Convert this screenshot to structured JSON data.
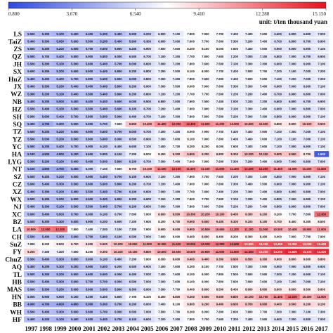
{
  "chart_data": {
    "type": "heatmap",
    "unit_label": "unit: t/ten thousand yuan",
    "colorbar": {
      "ticks": [
        "0.800",
        "3.670",
        "6.540",
        "9.410",
        "12.280",
        "15.150"
      ],
      "min": 0.8,
      "max": 15.15,
      "colors": [
        "#2d47e0",
        "#ffffff",
        "#e8101e"
      ]
    },
    "rows": [
      "LS",
      "TaiZ",
      "ZS",
      "QZ",
      "JH",
      "SX",
      "HuZ",
      "JX",
      "WZ",
      "NB",
      "HZ",
      "SH",
      "SQ",
      "TZ",
      "YZ",
      "YC",
      "HA",
      "LYG",
      "NT",
      "SZ",
      "CZ",
      "XZ",
      "WX",
      "NJ",
      "XC",
      "BZ",
      "LA",
      "CH",
      "SuZ",
      "FY",
      "ChuZ",
      "AQ",
      "TL",
      "HB",
      "MAS",
      "HN",
      "BB",
      "WH",
      "HF"
    ],
    "columns": [
      "1997",
      "1998",
      "1999",
      "2000",
      "2001",
      "2002",
      "2003",
      "2004",
      "2005",
      "2006",
      "2007",
      "2008",
      "2009",
      "2010",
      "2011",
      "2012",
      "2013",
      "2014",
      "2015",
      "2016",
      "2017"
    ],
    "values": [
      [
        5.5,
        5.3,
        5.1,
        5.4,
        5.4,
        5.3,
        5.4,
        5.9,
        6.2,
        6.9,
        7.1,
        7.8,
        7.9,
        7.7,
        7.4,
        7.4,
        7.6,
        6.6,
        6.8,
        6.8,
        7.0
      ],
      [
        5.4,
        5.3,
        5.0,
        5.6,
        5.5,
        5.2,
        5.4,
        5.9,
        6.3,
        6.9,
        7.0,
        7.6,
        7.7,
        7.6,
        7.3,
        7.2,
        7.4,
        6.7,
        6.8,
        6.7,
        6.9
      ],
      [
        5.5,
        5.3,
        5.2,
        5.5,
        5.7,
        5.6,
        5.9,
        6.2,
        6.9,
        7.5,
        7.6,
        8.2,
        8.1,
        8.0,
        7.6,
        7.4,
        7.6,
        6.9,
        6.9,
        6.9,
        7.1
      ],
      [
        5.5,
        5.7,
        5.4,
        5.8,
        5.9,
        5.8,
        6.0,
        6.5,
        6.7,
        7.1,
        7.3,
        7.7,
        7.8,
        7.6,
        7.2,
        7.0,
        7.1,
        6.8,
        7.0,
        6.7,
        6.9
      ],
      [
        5.5,
        5.3,
        5.1,
        5.5,
        5.6,
        5.4,
        5.7,
        6.0,
        6.6,
        7.0,
        7.2,
        7.8,
        7.6,
        7.5,
        7.1,
        7.3,
        7.3,
        6.9,
        7.0,
        6.9,
        7.1
      ],
      [
        5.6,
        5.3,
        5.2,
        5.6,
        5.5,
        5.4,
        5.8,
        6.2,
        6.8,
        7.3,
        7.5,
        8.1,
        8.0,
        7.7,
        7.4,
        7.5,
        7.7,
        7.2,
        7.1,
        7.0,
        7.2
      ],
      [
        5.4,
        5.4,
        5.4,
        5.7,
        5.8,
        5.6,
        5.9,
        6.0,
        6.8,
        7.3,
        7.3,
        7.8,
        7.6,
        7.6,
        7.4,
        7.6,
        7.6,
        7.1,
        7.2,
        7.0,
        7.2
      ],
      [
        5.4,
        5.3,
        5.2,
        5.4,
        5.4,
        5.4,
        5.8,
        6.2,
        6.9,
        7.3,
        7.5,
        8.0,
        7.9,
        7.6,
        7.3,
        7.3,
        7.4,
        6.9,
        7.0,
        6.9,
        7.1
      ],
      [
        5.3,
        5.2,
        5.1,
        5.4,
        5.5,
        5.4,
        5.8,
        6.2,
        6.8,
        7.1,
        7.2,
        7.7,
        7.7,
        7.5,
        7.2,
        7.2,
        7.4,
        6.7,
        6.9,
        6.8,
        7.0
      ],
      [
        5.4,
        5.2,
        5.0,
        5.4,
        5.4,
        5.4,
        5.6,
        6.0,
        6.5,
        6.8,
        7.0,
        7.6,
        7.5,
        7.4,
        7.0,
        7.1,
        7.2,
        6.6,
        6.8,
        6.7,
        6.9
      ],
      [
        5.5,
        5.4,
        5.1,
        5.5,
        5.5,
        5.4,
        5.6,
        6.1,
        6.7,
        7.2,
        7.4,
        7.9,
        7.8,
        7.5,
        7.1,
        7.3,
        7.4,
        6.9,
        7.0,
        6.8,
        7.0
      ],
      [
        5.9,
        5.6,
        5.4,
        5.7,
        5.8,
        5.6,
        5.9,
        6.4,
        6.7,
        7.1,
        7.3,
        7.8,
        7.8,
        7.5,
        7.2,
        7.3,
        7.3,
        6.8,
        6.9,
        6.9,
        7.1
      ],
      [
        5.3,
        4.7,
        5.3,
        5.5,
        5.6,
        5.7,
        7.6,
        9.8,
        10.4,
        11.4,
        12.0,
        12.4,
        11.5,
        11.2,
        10.9,
        10.5,
        10.5,
        8.8,
        8.8,
        10.1,
        9.5
      ],
      [
        5.6,
        5.2,
        5.2,
        5.5,
        5.5,
        5.6,
        5.7,
        6.0,
        6.7,
        7.3,
        7.4,
        8.0,
        7.9,
        7.7,
        7.4,
        7.4,
        7.5,
        7.1,
        7.3,
        7.0,
        7.1
      ],
      [
        5.5,
        5.5,
        5.2,
        5.5,
        5.8,
        5.6,
        6.0,
        6.5,
        6.9,
        7.3,
        7.6,
        8.1,
        7.9,
        7.8,
        7.4,
        7.4,
        7.6,
        7.1,
        7.1,
        7.0,
        7.1
      ],
      [
        5.5,
        5.2,
        5.4,
        5.7,
        5.9,
        6.1,
        6.4,
        6.6,
        7.1,
        7.4,
        7.7,
        8.2,
        8.2,
        8.0,
        7.6,
        7.4,
        7.6,
        7.1,
        7.0,
        6.9,
        7.1
      ],
      [
        5.1,
        4.9,
        4.9,
        5.1,
        5.6,
        5.9,
        6.1,
        7.2,
        8.0,
        8.4,
        9.3,
        9.8,
        9.2,
        8.8,
        9.3,
        10.2,
        10.2,
        9.9,
        9.9,
        8.7,
        1.5
      ],
      [
        5.3,
        5.2,
        5.1,
        5.4,
        5.4,
        5.6,
        5.8,
        6.1,
        6.7,
        7.3,
        7.4,
        7.9,
        7.9,
        7.6,
        7.3,
        7.2,
        7.4,
        6.9,
        7.0,
        6.8,
        7.0
      ],
      [
        5.1,
        4.8,
        4.7,
        5.3,
        6.3,
        7.1,
        7.6,
        8.7,
        10.1,
        11.5,
        12.1,
        11.6,
        11.1,
        11.6,
        11.4,
        12.2,
        12.2,
        11.4,
        11.0,
        11.2,
        11.6
      ],
      [
        5.5,
        5.4,
        5.2,
        5.5,
        5.5,
        5.4,
        5.7,
        6.1,
        6.6,
        7.1,
        7.3,
        7.8,
        7.7,
        7.5,
        7.2,
        7.3,
        7.4,
        6.8,
        7.0,
        6.9,
        7.1
      ],
      [
        5.6,
        5.4,
        5.3,
        5.5,
        5.6,
        5.5,
        5.8,
        6.2,
        6.7,
        7.1,
        7.4,
        7.9,
        7.9,
        7.6,
        7.3,
        7.4,
        7.5,
        6.9,
        7.0,
        6.9,
        7.1
      ],
      [
        5.4,
        5.3,
        5.2,
        5.4,
        5.5,
        5.4,
        5.7,
        6.1,
        6.6,
        7.0,
        7.3,
        7.7,
        7.6,
        7.4,
        7.2,
        7.3,
        7.4,
        6.8,
        6.9,
        6.8,
        7.0
      ],
      [
        5.5,
        5.3,
        5.2,
        5.5,
        5.5,
        5.4,
        5.8,
        6.2,
        6.6,
        7.1,
        7.3,
        7.8,
        7.7,
        7.5,
        7.1,
        7.2,
        7.4,
        6.8,
        7.0,
        6.9,
        7.1
      ],
      [
        5.4,
        5.3,
        5.1,
        5.5,
        5.5,
        5.4,
        5.7,
        6.1,
        6.6,
        7.0,
        7.3,
        7.8,
        7.6,
        7.5,
        7.2,
        7.2,
        7.4,
        6.8,
        6.9,
        6.8,
        7.0
      ],
      [
        5.6,
        5.4,
        5.5,
        5.7,
        6.0,
        6.1,
        6.7,
        7.5,
        7.9,
        8.9,
        9.5,
        10.3,
        10.2,
        10.1,
        9.4,
        9.3,
        9.2,
        8.2,
        7.7,
        7.5,
        12.3
      ],
      [
        5.5,
        5.3,
        5.3,
        5.6,
        5.9,
        6.2,
        6.6,
        7.2,
        7.6,
        8.2,
        8.7,
        9.5,
        9.6,
        9.4,
        9.3,
        9.1,
        9.1,
        8.7,
        8.4,
        8.3,
        8.5
      ],
      [
        10.9,
        12.0,
        12.3,
        7.8,
        7.4,
        7.0,
        7.1,
        7.3,
        7.9,
        8.6,
        9.0,
        9.9,
        10.5,
        10.6,
        11.2,
        11.2,
        11.0,
        10.5,
        10.4,
        10.9,
        11.0
      ],
      [
        5.5,
        5.4,
        5.3,
        5.6,
        5.7,
        5.8,
        6.1,
        6.5,
        7.0,
        7.6,
        8.0,
        8.4,
        8.6,
        8.4,
        8.2,
        8.3,
        8.4,
        8.0,
        7.9,
        7.7,
        7.9
      ],
      [
        7.6,
        8.2,
        8.5,
        8.7,
        8.9,
        9.5,
        10.2,
        10.6,
        11.0,
        11.3,
        11.6,
        12.0,
        12.1,
        12.2,
        12.6,
        13.0,
        13.2,
        13.4,
        13.3,
        13.0,
        13.4
      ],
      [
        9.2,
        7.4,
        7.4,
        7.5,
        8.2,
        9.3,
        10.1,
        10.1,
        9.8,
        10.6,
        10.5,
        10.6,
        10.9,
        11.5,
        11.6,
        12.3,
        13.2,
        14.2,
        14.6,
        14.1,
        14.4
      ],
      [
        5.5,
        5.4,
        5.3,
        5.6,
        5.9,
        6.1,
        6.4,
        7.2,
        7.9,
        8.3,
        8.6,
        9.4,
        9.4,
        9.3,
        9.6,
        9.5,
        9.3,
        8.9,
        8.8,
        8.6,
        8.8
      ],
      [
        5.4,
        5.2,
        5.3,
        5.3,
        5.5,
        5.6,
        6.2,
        6.5,
        6.9,
        7.4,
        7.6,
        8.2,
        8.1,
        7.7,
        7.5,
        7.3,
        7.5,
        6.9,
        7.0,
        6.8,
        6.9
      ],
      [
        5.5,
        5.3,
        5.2,
        5.5,
        5.6,
        5.6,
        6.0,
        6.4,
        7.0,
        7.4,
        7.6,
        8.1,
        8.0,
        7.8,
        7.5,
        7.5,
        7.5,
        7.0,
        7.2,
        6.9,
        7.1
      ],
      [
        5.5,
        5.4,
        5.3,
        5.6,
        5.7,
        5.7,
        6.0,
        6.5,
        7.0,
        7.3,
        7.6,
        8.1,
        8.0,
        7.8,
        7.6,
        7.6,
        7.6,
        7.1,
        7.2,
        7.0,
        7.2
      ],
      [
        5.6,
        5.3,
        5.2,
        5.6,
        5.6,
        5.6,
        5.9,
        6.3,
        6.9,
        7.3,
        7.7,
        8.4,
        8.6,
        8.5,
        8.4,
        8.6,
        8.8,
        8.6,
        8.6,
        8.5,
        8.6
      ],
      [
        6.0,
        5.9,
        5.9,
        6.1,
        6.2,
        6.4,
        6.8,
        7.7,
        8.1,
        8.4,
        8.8,
        9.2,
        9.5,
        9.6,
        9.8,
        10.1,
        10.7,
        11.4,
        12.2,
        10.4,
        11.0
      ],
      [
        4.9,
        4.7,
        4.6,
        4.8,
        5.0,
        5.3,
        5.7,
        6.2,
        6.9,
        7.4,
        8.1,
        8.8,
        9.2,
        9.4,
        9.6,
        9.7,
        9.9,
        9.4,
        9.5,
        9.2,
        9.1
      ],
      [
        5.5,
        5.4,
        5.3,
        5.6,
        5.6,
        5.7,
        6.0,
        6.5,
        7.0,
        7.5,
        7.7,
        8.2,
        8.0,
        7.8,
        7.6,
        7.6,
        7.7,
        7.3,
        7.3,
        7.1,
        7.3
      ],
      [
        5.4,
        5.2,
        5.1,
        5.4,
        5.5,
        5.4,
        5.7,
        6.1,
        6.6,
        7.1,
        7.3,
        7.8,
        7.7,
        7.5,
        7.3,
        7.4,
        7.5,
        6.9,
        7.0,
        6.8,
        7.0
      ]
    ]
  }
}
